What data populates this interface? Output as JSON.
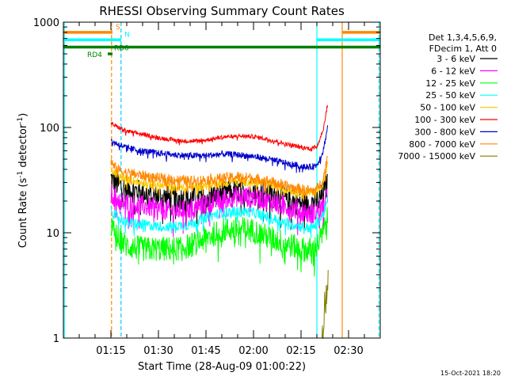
{
  "chart_data": {
    "type": "line",
    "title": "RHESSI Observing Summary Count Rates",
    "xlabel": "Start Time (28-Aug-09 01:00:22)",
    "ylabel_main": "Count Rate (s",
    "ylabel_sup1": "-1",
    "ylabel_mid": " detector",
    "ylabel_sup2": "-1",
    "ylabel_end": ")",
    "yscale": "log",
    "ylim": [
      1,
      1000
    ],
    "xlim_minutes": [
      0,
      100
    ],
    "x_ticks": [
      {
        "m": 15,
        "label": "01:15"
      },
      {
        "m": 30,
        "label": "01:30"
      },
      {
        "m": 45,
        "label": "01:45"
      },
      {
        "m": 60,
        "label": "02:00"
      },
      {
        "m": 75,
        "label": "02:15"
      },
      {
        "m": 90,
        "label": "02:30"
      }
    ],
    "y_ticks": [
      {
        "v": 1,
        "label": "1"
      },
      {
        "v": 10,
        "label": "10"
      },
      {
        "v": 100,
        "label": "100"
      },
      {
        "v": 1000,
        "label": "1000"
      }
    ],
    "legend": {
      "header1": "Det 1,3,4,5,6,9,",
      "header2": "FDecim 1, Att 0",
      "placement": "right"
    },
    "series": [
      {
        "name": "3 - 6 keV",
        "color": "#000000",
        "noise": 0.12,
        "x": [
          15,
          16,
          18,
          20,
          25,
          30,
          35,
          40,
          45,
          50,
          55,
          60,
          65,
          70,
          75,
          78,
          80,
          82,
          83.5
        ],
        "y": [
          33,
          30,
          28,
          26,
          24,
          22,
          21,
          21,
          22,
          24,
          25,
          25,
          24,
          21,
          19,
          19,
          20,
          23,
          30
        ]
      },
      {
        "name": "6 - 12 keV",
        "color": "#ff00ff",
        "noise": 0.1,
        "x": [
          15,
          16,
          18,
          20,
          25,
          30,
          35,
          40,
          45,
          50,
          55,
          60,
          65,
          70,
          75,
          78,
          80,
          82,
          83.5
        ],
        "y": [
          24,
          22,
          20,
          19,
          18,
          17,
          16,
          17,
          19,
          21,
          22,
          22,
          20,
          18,
          16,
          15,
          16,
          18,
          23
        ]
      },
      {
        "name": "12 - 25 keV",
        "color": "#00ff00",
        "noise": 0.12,
        "x": [
          15,
          16,
          18,
          20,
          25,
          30,
          35,
          40,
          45,
          50,
          55,
          60,
          65,
          70,
          75,
          78,
          80,
          82,
          83.5
        ],
        "y": [
          12,
          10,
          8.5,
          7.5,
          7,
          7,
          7,
          7.5,
          9,
          10.5,
          11,
          10.5,
          9,
          8,
          7,
          6.8,
          7.5,
          10,
          14
        ]
      },
      {
        "name": "25 - 50 keV",
        "color": "#00ffff",
        "noise": 0.05,
        "x": [
          15,
          16,
          18,
          20,
          25,
          30,
          35,
          40,
          45,
          50,
          55,
          60,
          65,
          70,
          75,
          78,
          80,
          82,
          83.5
        ],
        "y": [
          17,
          15,
          13.5,
          12.5,
          12,
          11.5,
          11.5,
          12,
          14,
          15.5,
          16,
          15.5,
          14,
          12.5,
          11.5,
          11,
          12,
          15,
          21
        ]
      },
      {
        "name": "50 - 100 keV",
        "color": "#ffcc00",
        "noise": 0.04,
        "x": [
          15,
          16,
          18,
          20,
          25,
          30,
          35,
          40,
          45,
          50,
          55,
          60,
          65,
          70,
          75,
          78,
          80,
          82,
          83.5
        ],
        "y": [
          40,
          37,
          34,
          32,
          30,
          28,
          27,
          27,
          28,
          30,
          31,
          30,
          29,
          26,
          24,
          24,
          25,
          30,
          45
        ]
      },
      {
        "name": "100 - 300 keV",
        "color": "#ff0000",
        "noise": 0.02,
        "x": [
          15,
          16,
          18,
          20,
          25,
          30,
          35,
          40,
          45,
          50,
          55,
          60,
          65,
          70,
          75,
          78,
          80,
          82,
          83.5
        ],
        "y": [
          110,
          105,
          98,
          92,
          86,
          80,
          76,
          74,
          76,
          81,
          83,
          82,
          77,
          70,
          65,
          63,
          66,
          95,
          175
        ]
      },
      {
        "name": "300 - 800 keV",
        "color": "#0000cc",
        "noise": 0.03,
        "x": [
          15,
          16,
          18,
          20,
          25,
          30,
          35,
          40,
          45,
          50,
          55,
          60,
          65,
          70,
          75,
          78,
          80,
          82,
          83.5
        ],
        "y": [
          75,
          72,
          68,
          64,
          60,
          57,
          55,
          54,
          54,
          56,
          55,
          53,
          50,
          46,
          43,
          42,
          44,
          60,
          105
        ]
      },
      {
        "name": "800 - 7000 keV",
        "color": "#ff8800",
        "noise": 0.05,
        "x": [
          15,
          16,
          18,
          20,
          25,
          30,
          35,
          40,
          45,
          50,
          55,
          60,
          65,
          70,
          75,
          78,
          80,
          82,
          83.5
        ],
        "y": [
          48,
          42,
          39,
          37,
          35,
          33,
          32,
          31,
          32,
          33,
          34,
          33,
          31,
          28,
          26,
          25,
          26,
          32,
          55
        ]
      },
      {
        "name": "7000 - 15000 keV",
        "color": "#808000",
        "noise": 0.15,
        "x": [
          81.5,
          82,
          82.5,
          83,
          83.3,
          83.6
        ],
        "y": [
          1,
          1.5,
          2,
          2.6,
          3.2,
          4
        ]
      }
    ],
    "flags": [
      {
        "label": "S",
        "color": "#ff8800",
        "y": 800,
        "segments": [
          [
            0,
            15.5
          ],
          [
            88,
            100
          ]
        ],
        "label_x": 16.5
      },
      {
        "label": "N",
        "color": "#00ffff",
        "y": 680,
        "segments": [
          [
            0,
            18.2
          ],
          [
            80,
            100
          ]
        ],
        "label_x": 19.3
      },
      {
        "label": "RD0",
        "color": "#008000",
        "y": 580,
        "segments": [
          [
            0,
            100
          ]
        ],
        "label_x": 16.0
      },
      {
        "label": "RD4",
        "color": "#008000",
        "y": 500,
        "segments": [
          [
            14,
            15.5
          ]
        ],
        "label_x": 7.5
      }
    ],
    "vlines": [
      {
        "m": 0.3,
        "color": "#00ffff",
        "dash": false
      },
      {
        "m": 15.2,
        "color": "#ff8800",
        "dash": true
      },
      {
        "m": 18.2,
        "color": "#00ccff",
        "dash": true
      },
      {
        "m": 80.0,
        "color": "#00ffff",
        "dash": false
      },
      {
        "m": 88.0,
        "color": "#ff8800",
        "dash": false
      },
      {
        "m": 99.6,
        "color": "#00ffff",
        "dash": true
      }
    ],
    "timestamp": "15-Oct-2021 18:20"
  }
}
